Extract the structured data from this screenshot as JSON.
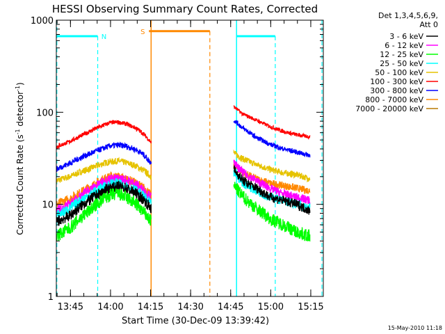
{
  "chart_data": {
    "type": "line",
    "title": "HESSI Observing Summary Count Rates, Corrected",
    "xlabel": "Start Time (30-Dec-09 13:39:42)",
    "ylabel_main": "Corrected Count Rate (s",
    "ylabel_sup1": "-1",
    "ylabel_mid": " detector",
    "ylabel_sup2": "-1",
    "ylabel_end": ")",
    "x_unit": "minutes since 13:39:42",
    "xlim": [
      0,
      100
    ],
    "ylim": [
      1,
      1000
    ],
    "yscale": "log",
    "x_ticks": [
      {
        "x": 5.3,
        "label": "13:45"
      },
      {
        "x": 20.3,
        "label": "14:00"
      },
      {
        "x": 35.3,
        "label": "14:15"
      },
      {
        "x": 50.3,
        "label": "14:30"
      },
      {
        "x": 65.3,
        "label": "14:45"
      },
      {
        "x": 80.3,
        "label": "15:00"
      },
      {
        "x": 95.3,
        "label": "15:15"
      }
    ],
    "y_ticks": [
      {
        "y": 1,
        "label": "1"
      },
      {
        "y": 10,
        "label": "10"
      },
      {
        "y": 100,
        "label": "100"
      },
      {
        "y": 1000,
        "label": "1000"
      }
    ],
    "legend_header": [
      "Det 1,3,4,5,6,9,",
      "Att 0"
    ],
    "legend_position": "right",
    "series": [
      {
        "name": "3 - 6 keV",
        "color": "#000000",
        "seg1": {
          "x": [
            0,
            5,
            10,
            15,
            18,
            20,
            23,
            26,
            30,
            33,
            35.5
          ],
          "y": [
            6.5,
            7.5,
            10,
            12.5,
            14,
            15,
            15.5,
            15,
            13,
            11,
            9
          ]
        },
        "seg2": {
          "x": [
            66.5,
            70,
            75,
            80,
            85,
            90,
            95
          ],
          "y": [
            24,
            18,
            15,
            12,
            11,
            10,
            8.5
          ]
        }
      },
      {
        "name": "6 - 12 keV",
        "color": "#ff00ff",
        "seg1": {
          "x": [
            0,
            5,
            10,
            15,
            18,
            20,
            23,
            26,
            30,
            33,
            35.5
          ],
          "y": [
            8.5,
            10,
            13,
            16,
            18,
            19,
            19,
            18.5,
            16.5,
            14,
            12
          ]
        },
        "seg2": {
          "x": [
            66.5,
            70,
            75,
            80,
            85,
            90,
            95
          ],
          "y": [
            28,
            22,
            18,
            15,
            13,
            12,
            11
          ]
        }
      },
      {
        "name": "12 - 25 keV",
        "color": "#00ff00",
        "seg1": {
          "x": [
            0,
            5,
            10,
            15,
            18,
            20,
            23,
            26,
            30,
            33,
            35.5
          ],
          "y": [
            4.5,
            5.5,
            7.5,
            10,
            11.5,
            12.5,
            13,
            12,
            10,
            8,
            6.5
          ]
        },
        "seg2": {
          "x": [
            66.5,
            70,
            75,
            80,
            85,
            90,
            95
          ],
          "y": [
            16,
            12,
            9,
            7,
            6,
            5,
            4.5
          ]
        }
      },
      {
        "name": "25 - 50 keV",
        "color": "#00ffff",
        "seg1": {
          "x": [
            0,
            5,
            10,
            15,
            18,
            20,
            23,
            26,
            30,
            33,
            35.5
          ],
          "y": [
            7.5,
            9,
            11.5,
            14,
            15.5,
            16.5,
            17,
            16,
            14,
            12,
            10
          ]
        },
        "seg2": {
          "x": [
            66.5,
            70,
            75,
            80,
            85,
            90,
            95
          ],
          "y": [
            22,
            17,
            14,
            12,
            11,
            10,
            9
          ]
        }
      },
      {
        "name": "50 - 100 keV",
        "color": "#e6c300",
        "seg1": {
          "x": [
            0,
            5,
            10,
            15,
            18,
            20,
            23,
            26,
            30,
            33,
            35.5
          ],
          "y": [
            18,
            20,
            23,
            26,
            28,
            29,
            29.5,
            28.5,
            26,
            23,
            20
          ]
        },
        "seg2": {
          "x": [
            66.5,
            70,
            75,
            80,
            85,
            90,
            95
          ],
          "y": [
            36,
            31,
            27,
            24,
            22,
            21,
            19
          ]
        }
      },
      {
        "name": "100 - 300 keV",
        "color": "#ff0000",
        "seg1": {
          "x": [
            0,
            5,
            10,
            15,
            18,
            20,
            23,
            26,
            30,
            33,
            35.5
          ],
          "y": [
            42,
            48,
            57,
            67,
            73,
            77,
            78,
            75,
            67,
            57,
            47
          ]
        },
        "seg2": {
          "x": [
            66.5,
            70,
            75,
            80,
            85,
            90,
            95
          ],
          "y": [
            115,
            95,
            82,
            70,
            62,
            57,
            54
          ]
        }
      },
      {
        "name": "300 - 800 keV",
        "color": "#0000ff",
        "seg1": {
          "x": [
            0,
            5,
            10,
            15,
            18,
            20,
            23,
            26,
            30,
            33,
            35.5
          ],
          "y": [
            24,
            28,
            33,
            38,
            41,
            43,
            44,
            43,
            39,
            34,
            28
          ]
        },
        "seg2": {
          "x": [
            66.5,
            70,
            75,
            80,
            85,
            90,
            95
          ],
          "y": [
            82,
            67,
            53,
            45,
            40,
            37,
            34
          ]
        }
      },
      {
        "name": "800 - 7000 keV",
        "color": "#ff8800",
        "seg1": {
          "x": [
            0,
            5,
            10,
            15,
            18,
            20,
            23,
            26,
            30,
            33,
            35.5
          ],
          "y": [
            10,
            11.5,
            14,
            17,
            19,
            20,
            20,
            19,
            17,
            15,
            12.5
          ]
        },
        "seg2": {
          "x": [
            66.5,
            70,
            75,
            80,
            85,
            90,
            95
          ],
          "y": [
            26,
            22,
            19,
            17,
            16,
            15,
            14
          ]
        }
      },
      {
        "name": "7000 - 20000 keV",
        "color": "#b87800",
        "seg1": null,
        "seg2": null
      }
    ],
    "annotations": {
      "bars": [
        {
          "label": "N",
          "color": "#00ffff",
          "x_start": 0,
          "x_end": 15.5,
          "level": 670,
          "dashed_line_x": 15.5,
          "bar_side": "left"
        },
        {
          "label": "S",
          "color": "#ff8800",
          "x_start": 34.7,
          "x_end": 57.5,
          "level": 760,
          "dashed_line_x": 57.5,
          "bar_side": "right"
        },
        {
          "label": "",
          "color": "#00ffff",
          "x_start": 67.5,
          "x_end": 82,
          "level": 670,
          "dashed_line_x": 82,
          "bar_side": "right"
        }
      ],
      "solid_lines": [
        {
          "x": 35.5,
          "color": "#ff8800"
        },
        {
          "x": 67.5,
          "color": "#00ffff"
        }
      ],
      "dashed_lines": [
        {
          "x": 0.2,
          "color": "#00ffff"
        },
        {
          "x": 99.5,
          "color": "#00ffff"
        }
      ]
    }
  },
  "footer": {
    "timestamp": "15-May-2010 11:18"
  }
}
